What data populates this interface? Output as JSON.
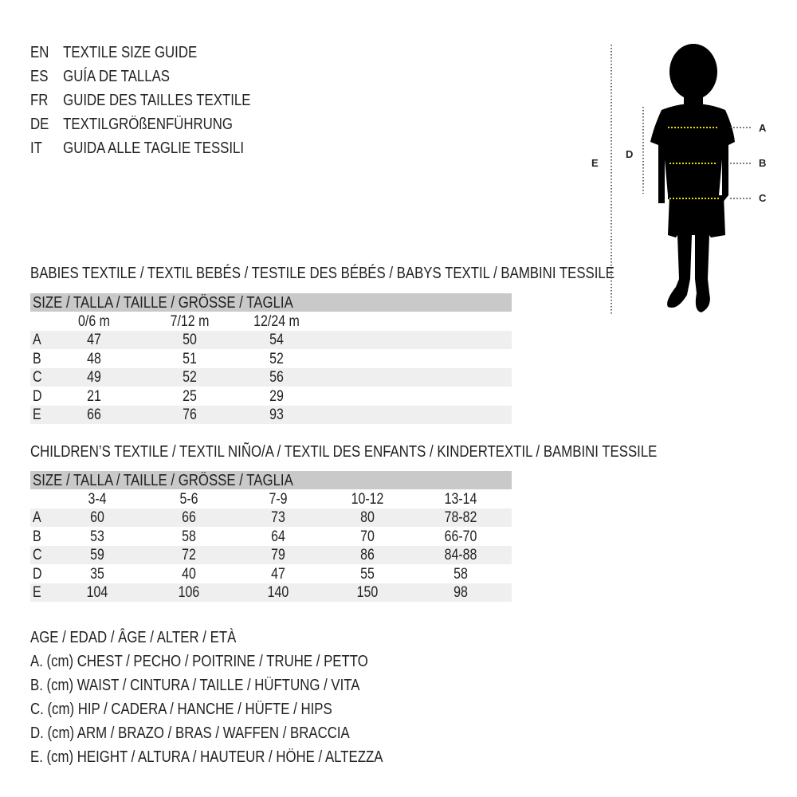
{
  "languages": [
    {
      "code": "EN",
      "title": "TEXTILE SIZE GUIDE"
    },
    {
      "code": "ES",
      "title": "GUÍA DE TALLAS"
    },
    {
      "code": "FR",
      "title": "GUIDE DES TAILLES TEXTILE"
    },
    {
      "code": "DE",
      "title": "TEXTILGRÖßENFÜHRUNG"
    },
    {
      "code": "IT",
      "title": "GUIDA ALLE TAGLIE TESSILI"
    }
  ],
  "figure": {
    "labels": {
      "a": "A",
      "b": "B",
      "c": "C",
      "d": "D",
      "e": "E"
    },
    "measure_line_color": "#f2d40a"
  },
  "babies": {
    "title": "BABIES TEXTILE / TEXTIL BEBÉS / TESTILE DES BÉBÉS / BABYS TEXTIL / BAMBINI TESSILE",
    "size_header": "SIZE / TALLA / TAILLE / GRÖSSE / TAGLIA",
    "columns": [
      "0/6 m",
      "7/12 m",
      "12/24 m"
    ],
    "rows": [
      {
        "label": "A",
        "values": [
          "47",
          "50",
          "54"
        ]
      },
      {
        "label": "B",
        "values": [
          "48",
          "51",
          "52"
        ]
      },
      {
        "label": "C",
        "values": [
          "49",
          "52",
          "56"
        ]
      },
      {
        "label": "D",
        "values": [
          "21",
          "25",
          "29"
        ]
      },
      {
        "label": "E",
        "values": [
          "66",
          "76",
          "93"
        ]
      }
    ]
  },
  "children": {
    "title": "CHILDREN’S TEXTILE / TEXTIL NIÑO/A / TEXTIL DES ENFANTS / KINDERTEXTIL / BAMBINI TESSILE",
    "size_header": "SIZE / TALLA / TAILLE / GRÖSSE / TAGLIA",
    "columns": [
      "3-4",
      "5-6",
      "7-9",
      "10-12",
      "13-14"
    ],
    "rows": [
      {
        "label": "A",
        "values": [
          "60",
          "66",
          "73",
          "80",
          "78-82"
        ]
      },
      {
        "label": "B",
        "values": [
          "53",
          "58",
          "64",
          "70",
          "66-70"
        ]
      },
      {
        "label": "C",
        "values": [
          "59",
          "72",
          "79",
          "86",
          "84-88"
        ]
      },
      {
        "label": "D",
        "values": [
          "35",
          "40",
          "47",
          "55",
          "58"
        ]
      },
      {
        "label": "E",
        "values": [
          "104",
          "106",
          "140",
          "150",
          "98"
        ]
      }
    ]
  },
  "legend": [
    "AGE / EDAD / ÂGE / ALTER / ETÀ",
    "A. (cm) CHEST / PECHO / POITRINE / TRUHE / PETTO",
    "B. (cm) WAIST / CINTURA / TAILLE / HÜFTUNG / VITA",
    "C. (cm) HIP / CADERA / HANCHE / HÜFTE / HIPS",
    "D. (cm) ARM / BRAZO / BRAS / WAFFEN / BRACCIA",
    "E. (cm) HEIGHT / ALTURA / HAUTEUR / HÖHE / ALTEZZA"
  ]
}
